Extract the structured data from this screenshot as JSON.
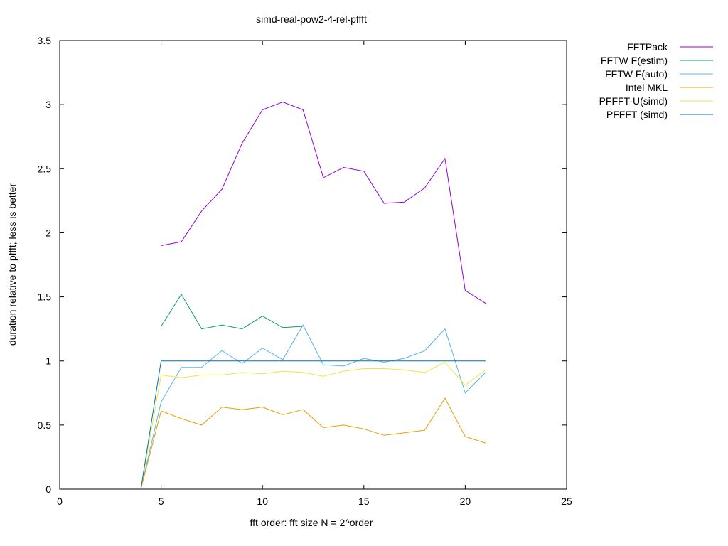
{
  "chart_data": {
    "type": "line",
    "title": "simd-real-pow2-4-rel-pffft",
    "xlabel": "fft order: fft size N = 2^order",
    "ylabel": "duration relative to pffft; less is better",
    "xlim": [
      0,
      25
    ],
    "ylim": [
      0,
      3.5
    ],
    "xticks": [
      "0",
      "5",
      "10",
      "15",
      "20",
      "25"
    ],
    "yticks": [
      "0",
      "0.5",
      "1",
      "1.5",
      "2",
      "2.5",
      "3",
      "3.5"
    ],
    "grid": false,
    "legend_position": "outside-top-right",
    "series": [
      {
        "name": "FFTPack",
        "color": "#9400d3",
        "points": [
          [
            5,
            1.9
          ],
          [
            6,
            1.93
          ],
          [
            7,
            2.17
          ],
          [
            8,
            2.34
          ],
          [
            9,
            2.7
          ],
          [
            10,
            2.96
          ],
          [
            11,
            3.02
          ],
          [
            12,
            2.96
          ],
          [
            13,
            2.43
          ],
          [
            14,
            2.51
          ],
          [
            15,
            2.48
          ],
          [
            16,
            2.23
          ],
          [
            17,
            2.24
          ],
          [
            18,
            2.35
          ],
          [
            19,
            2.58
          ],
          [
            20,
            1.55
          ],
          [
            21,
            1.45
          ]
        ]
      },
      {
        "name": "FFTW F(estim)",
        "color": "#009e73",
        "points": [
          [
            5,
            1.27
          ],
          [
            6,
            1.52
          ],
          [
            7,
            1.25
          ],
          [
            8,
            1.28
          ],
          [
            9,
            1.25
          ],
          [
            10,
            1.35
          ],
          [
            11,
            1.26
          ],
          [
            12,
            1.27
          ]
        ]
      },
      {
        "name": "FFTW F(auto)",
        "color": "#56b4e9",
        "points": [
          [
            4,
            0
          ],
          [
            5,
            0.68
          ],
          [
            6,
            0.95
          ],
          [
            7,
            0.95
          ],
          [
            8,
            1.08
          ],
          [
            9,
            0.98
          ],
          [
            10,
            1.1
          ],
          [
            11,
            1.01
          ],
          [
            12,
            1.28
          ],
          [
            13,
            0.97
          ],
          [
            14,
            0.96
          ],
          [
            15,
            1.02
          ],
          [
            16,
            0.99
          ],
          [
            17,
            1.02
          ],
          [
            18,
            1.08
          ],
          [
            19,
            1.25
          ],
          [
            20,
            0.75
          ],
          [
            21,
            0.91
          ]
        ]
      },
      {
        "name": "Intel MKL",
        "color": "#e69f00",
        "points": [
          [
            4,
            0
          ],
          [
            5,
            0.61
          ],
          [
            6,
            0.55
          ],
          [
            7,
            0.5
          ],
          [
            8,
            0.64
          ],
          [
            9,
            0.62
          ],
          [
            10,
            0.64
          ],
          [
            11,
            0.58
          ],
          [
            12,
            0.62
          ],
          [
            13,
            0.48
          ],
          [
            14,
            0.5
          ],
          [
            15,
            0.47
          ],
          [
            16,
            0.42
          ],
          [
            17,
            0.44
          ],
          [
            18,
            0.46
          ],
          [
            19,
            0.71
          ],
          [
            20,
            0.41
          ],
          [
            21,
            0.36
          ]
        ]
      },
      {
        "name": "PFFFT-U(simd)",
        "color": "#f0e442",
        "points": [
          [
            4,
            0
          ],
          [
            5,
            0.89
          ],
          [
            6,
            0.87
          ],
          [
            7,
            0.89
          ],
          [
            8,
            0.89
          ],
          [
            9,
            0.91
          ],
          [
            10,
            0.9
          ],
          [
            11,
            0.92
          ],
          [
            12,
            0.91
          ],
          [
            13,
            0.88
          ],
          [
            14,
            0.92
          ],
          [
            15,
            0.94
          ],
          [
            16,
            0.94
          ],
          [
            17,
            0.93
          ],
          [
            18,
            0.91
          ],
          [
            19,
            0.99
          ],
          [
            20,
            0.81
          ],
          [
            21,
            0.93
          ]
        ]
      },
      {
        "name": "PFFFT (simd)",
        "color": "#0072b2",
        "points": [
          [
            4,
            0
          ],
          [
            5,
            1.0
          ],
          [
            6,
            1.0
          ],
          [
            7,
            1.0
          ],
          [
            8,
            1.0
          ],
          [
            9,
            1.0
          ],
          [
            10,
            1.0
          ],
          [
            11,
            1.0
          ],
          [
            12,
            1.0
          ],
          [
            13,
            1.0
          ],
          [
            14,
            1.0
          ],
          [
            15,
            1.0
          ],
          [
            16,
            1.0
          ],
          [
            17,
            1.0
          ],
          [
            18,
            1.0
          ],
          [
            19,
            1.0
          ],
          [
            20,
            1.0
          ],
          [
            21,
            1.0
          ]
        ]
      }
    ]
  }
}
